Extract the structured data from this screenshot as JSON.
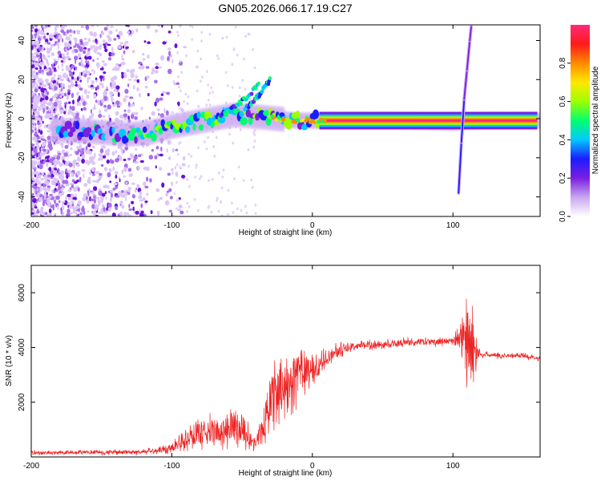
{
  "figure": {
    "title": "GN05.2026.066.17.19.C27"
  },
  "chart_data": [
    {
      "type": "heatmap",
      "title": "GN05.2026.066.17.19.C27",
      "xlabel": "Height of straight line (km)",
      "ylabel": "Frequency (Hz)",
      "xlim": [
        -200,
        162
      ],
      "ylim": [
        -50,
        48
      ],
      "x_ticks": [
        -200,
        -100,
        0,
        100
      ],
      "y_ticks": [
        -40,
        -20,
        0,
        20,
        40
      ],
      "x_tick_labels": [
        "-200",
        "-100",
        "0",
        "100"
      ],
      "y_tick_labels": [
        "-40",
        "-20",
        "0",
        "20",
        "40"
      ],
      "colorbar": {
        "label": "Normalized spectral amplitude",
        "range": [
          0,
          1
        ],
        "ticks": [
          0.0,
          0.2,
          0.4,
          0.6,
          0.8
        ],
        "tick_labels": [
          "0.0",
          "0.2",
          "0.4",
          "0.6",
          "0.8"
        ],
        "colormap": [
          "#ffffff",
          "#c9a6ef",
          "#7b1fe0",
          "#1c1cff",
          "#00c8ff",
          "#00ff6e",
          "#9dff00",
          "#ffe800",
          "#ff8a00",
          "#ff1a1a",
          "#ff2a7a"
        ]
      },
      "features": {
        "main_trace": [
          [
            -170,
            -6
          ],
          [
            -150,
            -7
          ],
          [
            -130,
            -8
          ],
          [
            -115,
            -7
          ],
          [
            -100,
            -4
          ],
          [
            -85,
            -2
          ],
          [
            -70,
            0
          ],
          [
            -55,
            2
          ],
          [
            -40,
            1
          ],
          [
            -25,
            0
          ],
          [
            -10,
            -1
          ],
          [
            0,
            -1
          ],
          [
            20,
            -1
          ],
          [
            60,
            -1
          ],
          [
            100,
            -2
          ],
          [
            120,
            -1
          ],
          [
            162,
            -1
          ]
        ],
        "upper_branches": [
          [
            [
              -70,
              0
            ],
            [
              -55,
              6
            ],
            [
              -45,
              12
            ],
            [
              -38,
              18
            ]
          ],
          [
            [
              -48,
              5
            ],
            [
              -38,
              12
            ],
            [
              -30,
              20
            ]
          ]
        ],
        "strong_segment_x": [
          5,
          160
        ],
        "meteor_streak": [
          [
            104,
            -38
          ],
          [
            106,
            -12
          ],
          [
            108,
            10
          ],
          [
            110,
            25
          ],
          [
            112,
            40
          ],
          [
            113,
            47
          ]
        ]
      }
    },
    {
      "type": "line",
      "title": "",
      "xlabel": "Height of straight line (km)",
      "ylabel": "SNR (10 * v/v)",
      "xlim": [
        -200,
        162
      ],
      "ylim": [
        0,
        7000
      ],
      "x_ticks": [
        -200,
        -100,
        0,
        100
      ],
      "y_ticks": [
        2000,
        4000,
        6000
      ],
      "x_tick_labels": [
        "-200",
        "-100",
        "0",
        "100"
      ],
      "y_tick_labels": [
        "2000",
        "4000",
        "6000"
      ],
      "color": "#ee2222",
      "series": [
        {
          "name": "SNR",
          "x": [
            -200,
            -180,
            -160,
            -140,
            -120,
            -110,
            -100,
            -90,
            -80,
            -70,
            -60,
            -50,
            -45,
            -40,
            -35,
            -30,
            -25,
            -20,
            -15,
            -10,
            -5,
            0,
            5,
            10,
            15,
            20,
            25,
            30,
            40,
            50,
            60,
            70,
            80,
            90,
            100,
            105,
            108,
            110,
            112,
            115,
            118,
            120,
            130,
            140,
            150,
            162
          ],
          "values": [
            150,
            150,
            160,
            170,
            180,
            250,
            350,
            600,
            900,
            950,
            1000,
            1100,
            700,
            500,
            1000,
            2200,
            2400,
            2500,
            2800,
            3000,
            3200,
            3100,
            3300,
            3600,
            3800,
            3900,
            4000,
            4050,
            4100,
            4100,
            4150,
            4200,
            4200,
            4200,
            4250,
            4300,
            4200,
            4000,
            4100,
            3900,
            3800,
            3750,
            3700,
            3700,
            3700,
            3600
          ],
          "noise_amplitude": [
            100,
            100,
            100,
            110,
            120,
            150,
            250,
            450,
            700,
            750,
            800,
            900,
            650,
            450,
            900,
            1300,
            1400,
            1400,
            1300,
            1200,
            1000,
            800,
            600,
            450,
            350,
            300,
            250,
            200,
            200,
            200,
            200,
            200,
            200,
            180,
            200,
            600,
            2000,
            2800,
            2300,
            1500,
            300,
            150,
            120,
            120,
            120,
            120
          ]
        }
      ]
    }
  ]
}
